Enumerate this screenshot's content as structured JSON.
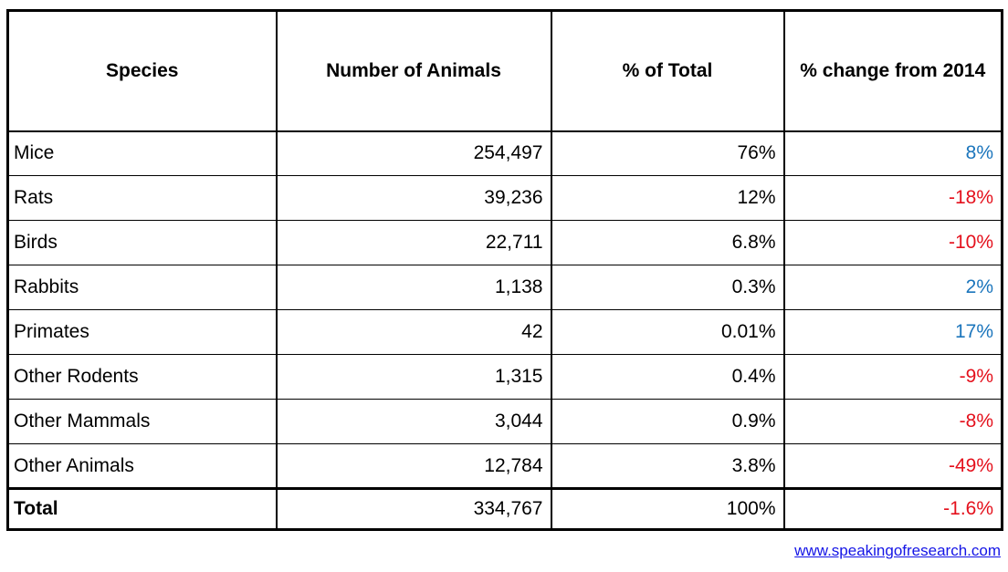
{
  "chart_data": {
    "type": "table",
    "title": "",
    "columns": [
      "Species",
      "Number of Animals",
      "% of Total",
      "% change from 2014"
    ],
    "rows": [
      {
        "species": "Mice",
        "number": "254,497",
        "pct_total": "76%",
        "pct_change": "8%",
        "direction": "positive"
      },
      {
        "species": "Rats",
        "number": "39,236",
        "pct_total": "12%",
        "pct_change": "-18%",
        "direction": "negative"
      },
      {
        "species": "Birds",
        "number": "22,711",
        "pct_total": "6.8%",
        "pct_change": "-10%",
        "direction": "negative"
      },
      {
        "species": "Rabbits",
        "number": "1,138",
        "pct_total": "0.3%",
        "pct_change": "2%",
        "direction": "positive"
      },
      {
        "species": "Primates",
        "number": "42",
        "pct_total": "0.01%",
        "pct_change": "17%",
        "direction": "positive"
      },
      {
        "species": "Other Rodents",
        "number": "1,315",
        "pct_total": "0.4%",
        "pct_change": "-9%",
        "direction": "negative"
      },
      {
        "species": "Other Mammals",
        "number": "3,044",
        "pct_total": "0.9%",
        "pct_change": "-8%",
        "direction": "negative"
      },
      {
        "species": "Other Animals",
        "number": "12,784",
        "pct_total": "3.8%",
        "pct_change": "-49%",
        "direction": "negative"
      },
      {
        "species": "Total",
        "number": "334,767",
        "pct_total": "100%",
        "pct_change": "-1.6%",
        "direction": "negative"
      }
    ]
  },
  "footer": {
    "link_text": "www.speakingofresearch.com"
  },
  "colors": {
    "positive": "#1b75bc",
    "negative": "#e4101c",
    "link": "#1414e6",
    "border": "#000000"
  }
}
